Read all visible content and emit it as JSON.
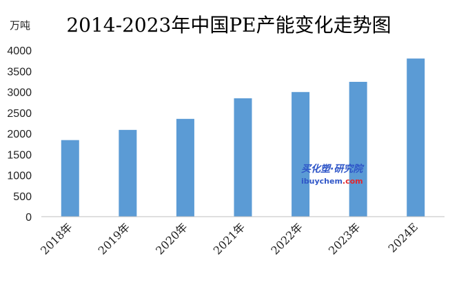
{
  "chart_data": {
    "type": "bar",
    "title": "2014-2023年中国PE产能变化走势图",
    "unit_label": "万吨",
    "categories": [
      "2018年",
      "2019年",
      "2020年",
      "2021年",
      "2022年",
      "2023年",
      "2024E"
    ],
    "values": [
      1840,
      2085,
      2350,
      2845,
      2995,
      3240,
      3800
    ],
    "ylim": [
      0,
      4000
    ],
    "yticks": [
      0,
      500,
      1000,
      1500,
      2000,
      2500,
      3000,
      3500,
      4000
    ],
    "grid": false,
    "legend": "none",
    "bar_color": "#5b9bd5",
    "axis_color": "#bfbfbf"
  },
  "watermark": {
    "brand_cn": "买化塑·研究院",
    "site_main": "ibuychem",
    "site_tld": ".com",
    "colors": {
      "primary": "#2f56c8",
      "accent": "#e0282e"
    }
  }
}
